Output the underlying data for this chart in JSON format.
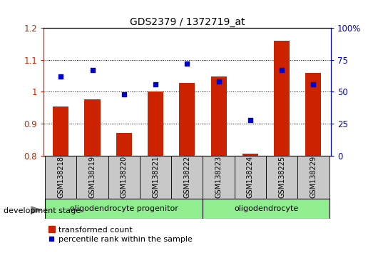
{
  "title": "GDS2379 / 1372719_at",
  "samples": [
    "GSM138218",
    "GSM138219",
    "GSM138220",
    "GSM138221",
    "GSM138222",
    "GSM138223",
    "GSM138224",
    "GSM138225",
    "GSM138229"
  ],
  "bar_values": [
    0.953,
    0.975,
    0.871,
    1.0,
    1.028,
    1.048,
    0.806,
    1.16,
    1.058
  ],
  "dot_values_pct": [
    62,
    67,
    48,
    56,
    72,
    58,
    28,
    67,
    56
  ],
  "ylim_left": [
    0.8,
    1.2
  ],
  "ylim_right": [
    0,
    100
  ],
  "yticks_left": [
    0.8,
    0.9,
    1.0,
    1.1,
    1.2
  ],
  "ytick_labels_left": [
    "0.8",
    "0.9",
    "1",
    "1.1",
    "1.2"
  ],
  "yticks_right": [
    0,
    25,
    50,
    75,
    100
  ],
  "ytick_labels_right": [
    "0",
    "25",
    "50",
    "75",
    "100%"
  ],
  "group1_label": "oligodendrocyte progenitor",
  "group1_count": 5,
  "group2_label": "oligodendrocyte",
  "group2_count": 4,
  "group_color": "#90ee90",
  "bar_color": "#cc2200",
  "dot_color": "#0000cc",
  "bar_width": 0.5,
  "grid_color": "black",
  "bg_color": "#ffffff",
  "tick_color_left": "#cc2200",
  "tick_color_right": "#0000cc",
  "legend_bar_label": "transformed count",
  "legend_dot_label": "percentile rank within the sample",
  "dev_stage_label": "development stage",
  "sample_box_color": "#c8c8c8",
  "arrow_color": "#808080"
}
